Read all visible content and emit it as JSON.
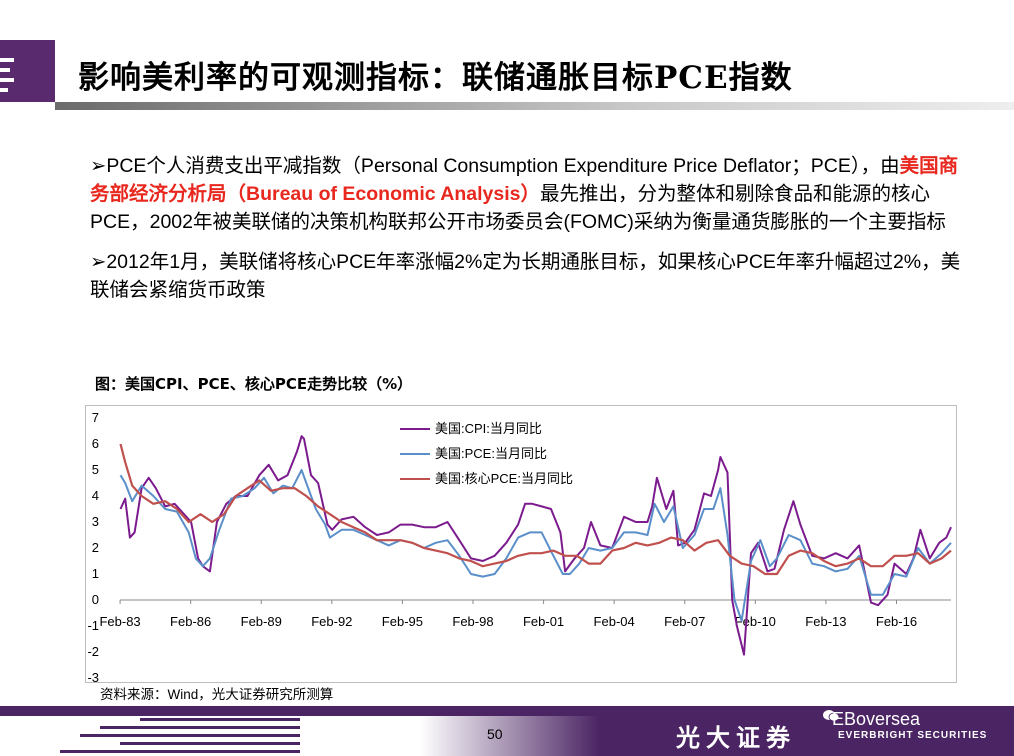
{
  "header": {
    "title": "影响美利率的可观测指标：联储通胀目标PCE指数"
  },
  "body": {
    "para1_pre": "➢PCE个人消费支出平减指数（Personal Consumption Expenditure Price Deflator；PCE），由",
    "para1_highlight": "美国商务部经济分析局（Bureau of Economic Analysis）",
    "para1_post": "最先推出，分为整体和剔除食品和能源的核心PCE，2002年被美联储的决策机构联邦公开市场委员会(FOMC)采纳为衡量通货膨胀的一个主要指标",
    "para2": "➢2012年1月，美联储将核心PCE年率涨幅2%定为长期通胀目标，如果核心PCE年率升幅超过2%，美联储会紧缩货币政策"
  },
  "figure": {
    "caption": "图：美国CPI、PCE、核心PCE走势比较（%）",
    "source": "资料来源：Wind，光大证券研究所测算"
  },
  "chart_data": {
    "type": "line",
    "ylim": [
      -3,
      7
    ],
    "yticks": [
      "7",
      "6",
      "5",
      "4",
      "3",
      "2",
      "1",
      "0",
      "-1",
      "-2",
      "-3"
    ],
    "x_start": 1983.08,
    "x_end": 2018.4,
    "x_ticks": [
      "Feb-83",
      "Feb-86",
      "Feb-89",
      "Feb-92",
      "Feb-95",
      "Feb-98",
      "Feb-01",
      "Feb-04",
      "Feb-07",
      "Feb-10",
      "Feb-13",
      "Feb-16"
    ],
    "legend_placement": "top-center",
    "series": [
      {
        "name": "美国:CPI:当月同比",
        "color": "#7b1b8e",
        "x": [
          1983.1,
          1983.3,
          1983.5,
          1983.7,
          1984.0,
          1984.3,
          1984.6,
          1985.0,
          1985.4,
          1985.8,
          1986.1,
          1986.4,
          1986.6,
          1986.9,
          1987.2,
          1987.6,
          1988.0,
          1988.5,
          1989.0,
          1989.4,
          1989.8,
          1990.2,
          1990.6,
          1990.8,
          1990.9,
          1991.2,
          1991.5,
          1991.9,
          1992.1,
          1992.5,
          1993.0,
          1993.5,
          1994.0,
          1994.5,
          1995.0,
          1995.5,
          1996.0,
          1996.5,
          1997.0,
          1997.5,
          1998.0,
          1998.5,
          1999.0,
          1999.5,
          2000.0,
          2000.3,
          2000.6,
          2001.0,
          2001.4,
          2001.8,
          2002.0,
          2002.4,
          2002.8,
          2003.1,
          2003.5,
          2004.0,
          2004.5,
          2005.0,
          2005.5,
          2005.7,
          2005.9,
          2006.3,
          2006.6,
          2006.8,
          2007.1,
          2007.5,
          2007.9,
          2008.2,
          2008.5,
          2008.6,
          2008.9,
          2009.1,
          2009.3,
          2009.6,
          2009.9,
          2010.2,
          2010.6,
          2010.9,
          2011.3,
          2011.7,
          2012.0,
          2012.5,
          2013.0,
          2013.5,
          2014.0,
          2014.5,
          2015.0,
          2015.3,
          2015.7,
          2016.0,
          2016.5,
          2016.8,
          2017.1,
          2017.5,
          2017.9,
          2018.2,
          2018.4
        ],
        "values": [
          3.5,
          3.9,
          2.4,
          2.6,
          4.3,
          4.7,
          4.3,
          3.6,
          3.7,
          3.3,
          3.0,
          1.6,
          1.3,
          1.1,
          3.0,
          3.7,
          4.0,
          4.0,
          4.8,
          5.2,
          4.6,
          4.8,
          5.7,
          6.3,
          6.2,
          4.8,
          4.5,
          2.9,
          2.7,
          3.1,
          3.2,
          2.8,
          2.5,
          2.6,
          2.9,
          2.9,
          2.8,
          2.8,
          3.0,
          2.3,
          1.6,
          1.5,
          1.7,
          2.2,
          2.9,
          3.7,
          3.7,
          3.6,
          3.5,
          2.6,
          1.1,
          1.6,
          2.0,
          3.0,
          2.1,
          2.0,
          3.2,
          3.0,
          3.0,
          3.6,
          4.7,
          3.5,
          4.2,
          2.1,
          2.2,
          2.7,
          4.1,
          4.0,
          5.0,
          5.5,
          4.9,
          0.0,
          -1.0,
          -2.1,
          1.8,
          2.2,
          1.1,
          1.2,
          2.7,
          3.8,
          2.9,
          1.7,
          1.6,
          1.8,
          1.6,
          2.1,
          -0.1,
          -0.2,
          0.2,
          1.4,
          1.0,
          1.6,
          2.7,
          1.6,
          2.2,
          2.4,
          2.8
        ]
      },
      {
        "name": "美国:PCE:当月同比",
        "color": "#5b8fc9",
        "x": [
          1983.1,
          1983.3,
          1983.6,
          1984.0,
          1984.5,
          1985.0,
          1985.5,
          1986.0,
          1986.3,
          1986.6,
          1986.9,
          1987.3,
          1987.8,
          1988.3,
          1988.8,
          1989.2,
          1989.6,
          1990.0,
          1990.4,
          1990.8,
          1991.0,
          1991.4,
          1991.8,
          1992.0,
          1992.5,
          1993.0,
          1993.5,
          1994.0,
          1994.5,
          1995.0,
          1995.5,
          1996.0,
          1996.5,
          1997.0,
          1997.5,
          1998.0,
          1998.5,
          1999.0,
          1999.5,
          2000.0,
          2000.5,
          2001.0,
          2001.5,
          2001.9,
          2002.2,
          2002.6,
          2003.0,
          2003.5,
          2004.0,
          2004.5,
          2005.0,
          2005.5,
          2005.8,
          2006.2,
          2006.6,
          2007.0,
          2007.5,
          2007.9,
          2008.3,
          2008.6,
          2008.9,
          2009.2,
          2009.5,
          2009.9,
          2010.3,
          2010.7,
          2011.0,
          2011.5,
          2012.0,
          2012.5,
          2013.0,
          2013.5,
          2014.0,
          2014.5,
          2015.0,
          2015.5,
          2016.0,
          2016.5,
          2017.0,
          2017.5,
          2018.0,
          2018.4
        ],
        "values": [
          4.8,
          4.5,
          3.8,
          4.4,
          4.0,
          3.5,
          3.4,
          2.6,
          1.6,
          1.3,
          1.6,
          2.7,
          3.9,
          4.0,
          4.3,
          4.7,
          4.1,
          4.4,
          4.3,
          5.0,
          4.5,
          3.5,
          2.9,
          2.4,
          2.7,
          2.7,
          2.5,
          2.3,
          2.1,
          2.3,
          2.2,
          2.0,
          2.2,
          2.3,
          1.7,
          1.0,
          0.9,
          1.0,
          1.6,
          2.4,
          2.6,
          2.6,
          1.7,
          1.0,
          1.0,
          1.4,
          2.0,
          1.9,
          2.0,
          2.6,
          2.6,
          2.5,
          3.7,
          3.0,
          3.6,
          2.0,
          2.5,
          3.5,
          3.5,
          4.3,
          2.5,
          0.0,
          -0.8,
          1.5,
          2.3,
          1.3,
          1.6,
          2.5,
          2.3,
          1.4,
          1.3,
          1.1,
          1.2,
          1.7,
          0.2,
          0.2,
          1.0,
          0.9,
          2.0,
          1.4,
          1.8,
          2.2
        ]
      },
      {
        "name": "美国:核心PCE:当月同比",
        "color": "#c0504d",
        "x": [
          1983.1,
          1983.3,
          1983.6,
          1984.0,
          1984.5,
          1985.0,
          1985.5,
          1986.0,
          1986.5,
          1987.0,
          1987.5,
          1988.0,
          1988.5,
          1989.0,
          1989.5,
          1990.0,
          1990.5,
          1991.0,
          1991.5,
          1992.0,
          1992.5,
          1993.0,
          1993.5,
          1994.0,
          1994.5,
          1995.0,
          1995.5,
          1996.0,
          1996.5,
          1997.0,
          1997.5,
          1998.0,
          1998.5,
          1999.0,
          1999.5,
          2000.0,
          2000.5,
          2001.0,
          2001.5,
          2002.0,
          2002.5,
          2003.0,
          2003.5,
          2004.0,
          2004.5,
          2005.0,
          2005.5,
          2006.0,
          2006.5,
          2007.0,
          2007.5,
          2008.0,
          2008.5,
          2009.0,
          2009.5,
          2010.0,
          2010.5,
          2011.0,
          2011.5,
          2012.0,
          2012.5,
          2013.0,
          2013.5,
          2014.0,
          2014.5,
          2015.0,
          2015.5,
          2016.0,
          2016.5,
          2017.0,
          2017.5,
          2018.0,
          2018.4
        ],
        "values": [
          6.0,
          5.3,
          4.4,
          4.0,
          3.7,
          3.8,
          3.5,
          3.0,
          3.3,
          3.0,
          3.3,
          4.0,
          4.3,
          4.6,
          4.2,
          4.3,
          4.3,
          4.0,
          3.6,
          3.3,
          3.0,
          2.8,
          2.6,
          2.3,
          2.3,
          2.3,
          2.2,
          2.0,
          1.9,
          1.8,
          1.6,
          1.5,
          1.3,
          1.4,
          1.5,
          1.7,
          1.8,
          1.8,
          1.9,
          1.7,
          1.7,
          1.4,
          1.4,
          1.9,
          2.0,
          2.2,
          2.1,
          2.2,
          2.4,
          2.3,
          1.9,
          2.2,
          2.3,
          1.7,
          1.4,
          1.3,
          1.0,
          1.0,
          1.7,
          1.9,
          1.8,
          1.5,
          1.3,
          1.4,
          1.6,
          1.3,
          1.3,
          1.7,
          1.7,
          1.8,
          1.4,
          1.6,
          1.9
        ]
      }
    ]
  },
  "footer": {
    "page_number": "50",
    "brand_cn": "光大证券",
    "brand_en": "EBoversea",
    "brand_en_sub": "EVERBRIGHT SECURITIES"
  }
}
